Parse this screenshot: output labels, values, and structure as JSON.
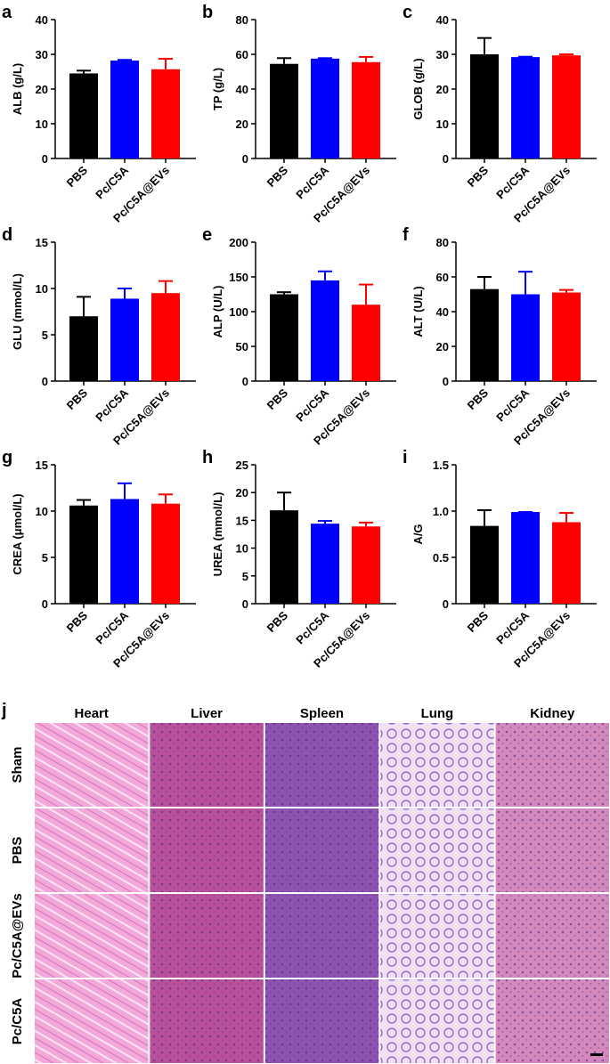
{
  "chart_data": [
    {
      "type": "bar",
      "panel": "a",
      "ylabel": "ALB (g/L)",
      "categories": [
        "PBS",
        "Pc/C5A",
        "Pc/C5A@EVs"
      ],
      "values": [
        24.5,
        28.2,
        25.7
      ],
      "errors": [
        0.8,
        0.2,
        3.0
      ],
      "colors": [
        "#000000",
        "#0000ff",
        "#ff0000"
      ],
      "ylim": [
        0,
        40
      ],
      "yticks": [
        0,
        10,
        20,
        30,
        40
      ]
    },
    {
      "type": "bar",
      "panel": "b",
      "ylabel": "TP (g/L)",
      "categories": [
        "PBS",
        "Pc/C5A",
        "Pc/C5A@EVs"
      ],
      "values": [
        54.5,
        57.5,
        55.5
      ],
      "errors": [
        3.3,
        0.3,
        3.0
      ],
      "colors": [
        "#000000",
        "#0000ff",
        "#ff0000"
      ],
      "ylim": [
        0,
        80
      ],
      "yticks": [
        0,
        20,
        40,
        60,
        80
      ]
    },
    {
      "type": "bar",
      "panel": "c",
      "ylabel": "GLOB (g/L)",
      "categories": [
        "PBS",
        "Pc/C5A",
        "Pc/C5A@EVs"
      ],
      "values": [
        30,
        29.2,
        29.7
      ],
      "errors": [
        4.7,
        0.1,
        0.3
      ],
      "colors": [
        "#000000",
        "#0000ff",
        "#ff0000"
      ],
      "ylim": [
        0,
        40
      ],
      "yticks": [
        0,
        10,
        20,
        30,
        40
      ]
    },
    {
      "type": "bar",
      "panel": "d",
      "ylabel": "GLU (mmol/L)",
      "categories": [
        "PBS",
        "Pc/C5A",
        "Pc/C5A@EVs"
      ],
      "values": [
        7.0,
        8.9,
        9.5
      ],
      "errors": [
        2.1,
        1.1,
        1.3
      ],
      "colors": [
        "#000000",
        "#0000ff",
        "#ff0000"
      ],
      "ylim": [
        0,
        15
      ],
      "yticks": [
        0,
        5,
        10,
        15
      ]
    },
    {
      "type": "bar",
      "panel": "e",
      "ylabel": "ALP (U/L)",
      "categories": [
        "PBS",
        "Pc/C5A",
        "Pc/C5A@EVs"
      ],
      "values": [
        125,
        145,
        110
      ],
      "errors": [
        3,
        13,
        29
      ],
      "colors": [
        "#000000",
        "#0000ff",
        "#ff0000"
      ],
      "ylim": [
        0,
        200
      ],
      "yticks": [
        0,
        50,
        100,
        150,
        200
      ]
    },
    {
      "type": "bar",
      "panel": "f",
      "ylabel": "ALT (U/L)",
      "categories": [
        "PBS",
        "Pc/C5A",
        "Pc/C5A@EVs"
      ],
      "values": [
        53,
        50,
        51
      ],
      "errors": [
        7,
        13,
        1.5
      ],
      "colors": [
        "#000000",
        "#0000ff",
        "#ff0000"
      ],
      "ylim": [
        0,
        80
      ],
      "yticks": [
        0,
        20,
        40,
        60,
        80
      ]
    },
    {
      "type": "bar",
      "panel": "g",
      "ylabel": "CREA (μmol/L)",
      "categories": [
        "PBS",
        "Pc/C5A",
        "Pc/C5A@EVs"
      ],
      "values": [
        10.6,
        11.3,
        10.8
      ],
      "errors": [
        0.6,
        1.7,
        1.0
      ],
      "colors": [
        "#000000",
        "#0000ff",
        "#ff0000"
      ],
      "ylim": [
        0,
        15
      ],
      "yticks": [
        0,
        5,
        10,
        15
      ]
    },
    {
      "type": "bar",
      "panel": "h",
      "ylabel": "UREA (mmol/L)",
      "categories": [
        "PBS",
        "Pc/C5A",
        "Pc/C5A@EVs"
      ],
      "values": [
        16.8,
        14.4,
        13.9
      ],
      "errors": [
        3.2,
        0.5,
        0.7
      ],
      "colors": [
        "#000000",
        "#0000ff",
        "#ff0000"
      ],
      "ylim": [
        0,
        25
      ],
      "yticks": [
        0,
        5,
        10,
        15,
        20,
        25
      ]
    },
    {
      "type": "bar",
      "panel": "i",
      "ylabel": "A/G",
      "categories": [
        "PBS",
        "Pc/C5A",
        "Pc/C5A@EVs"
      ],
      "values": [
        0.84,
        0.99,
        0.88
      ],
      "errors": [
        0.17,
        0,
        0.1
      ],
      "colors": [
        "#000000",
        "#0000ff",
        "#ff0000"
      ],
      "ylim": [
        0,
        1.5
      ],
      "yticks": [
        0,
        0.5,
        {
          "value": 1.0,
          "label": "1.0"
        },
        1.5
      ]
    }
  ],
  "histology": {
    "panel": "j",
    "columns": [
      "Heart",
      "Liver",
      "Spleen",
      "Lung",
      "Kidney"
    ],
    "rows": [
      "Sham",
      "PBS",
      "Pc/C5A@EVs",
      "Pc/C5A"
    ]
  }
}
